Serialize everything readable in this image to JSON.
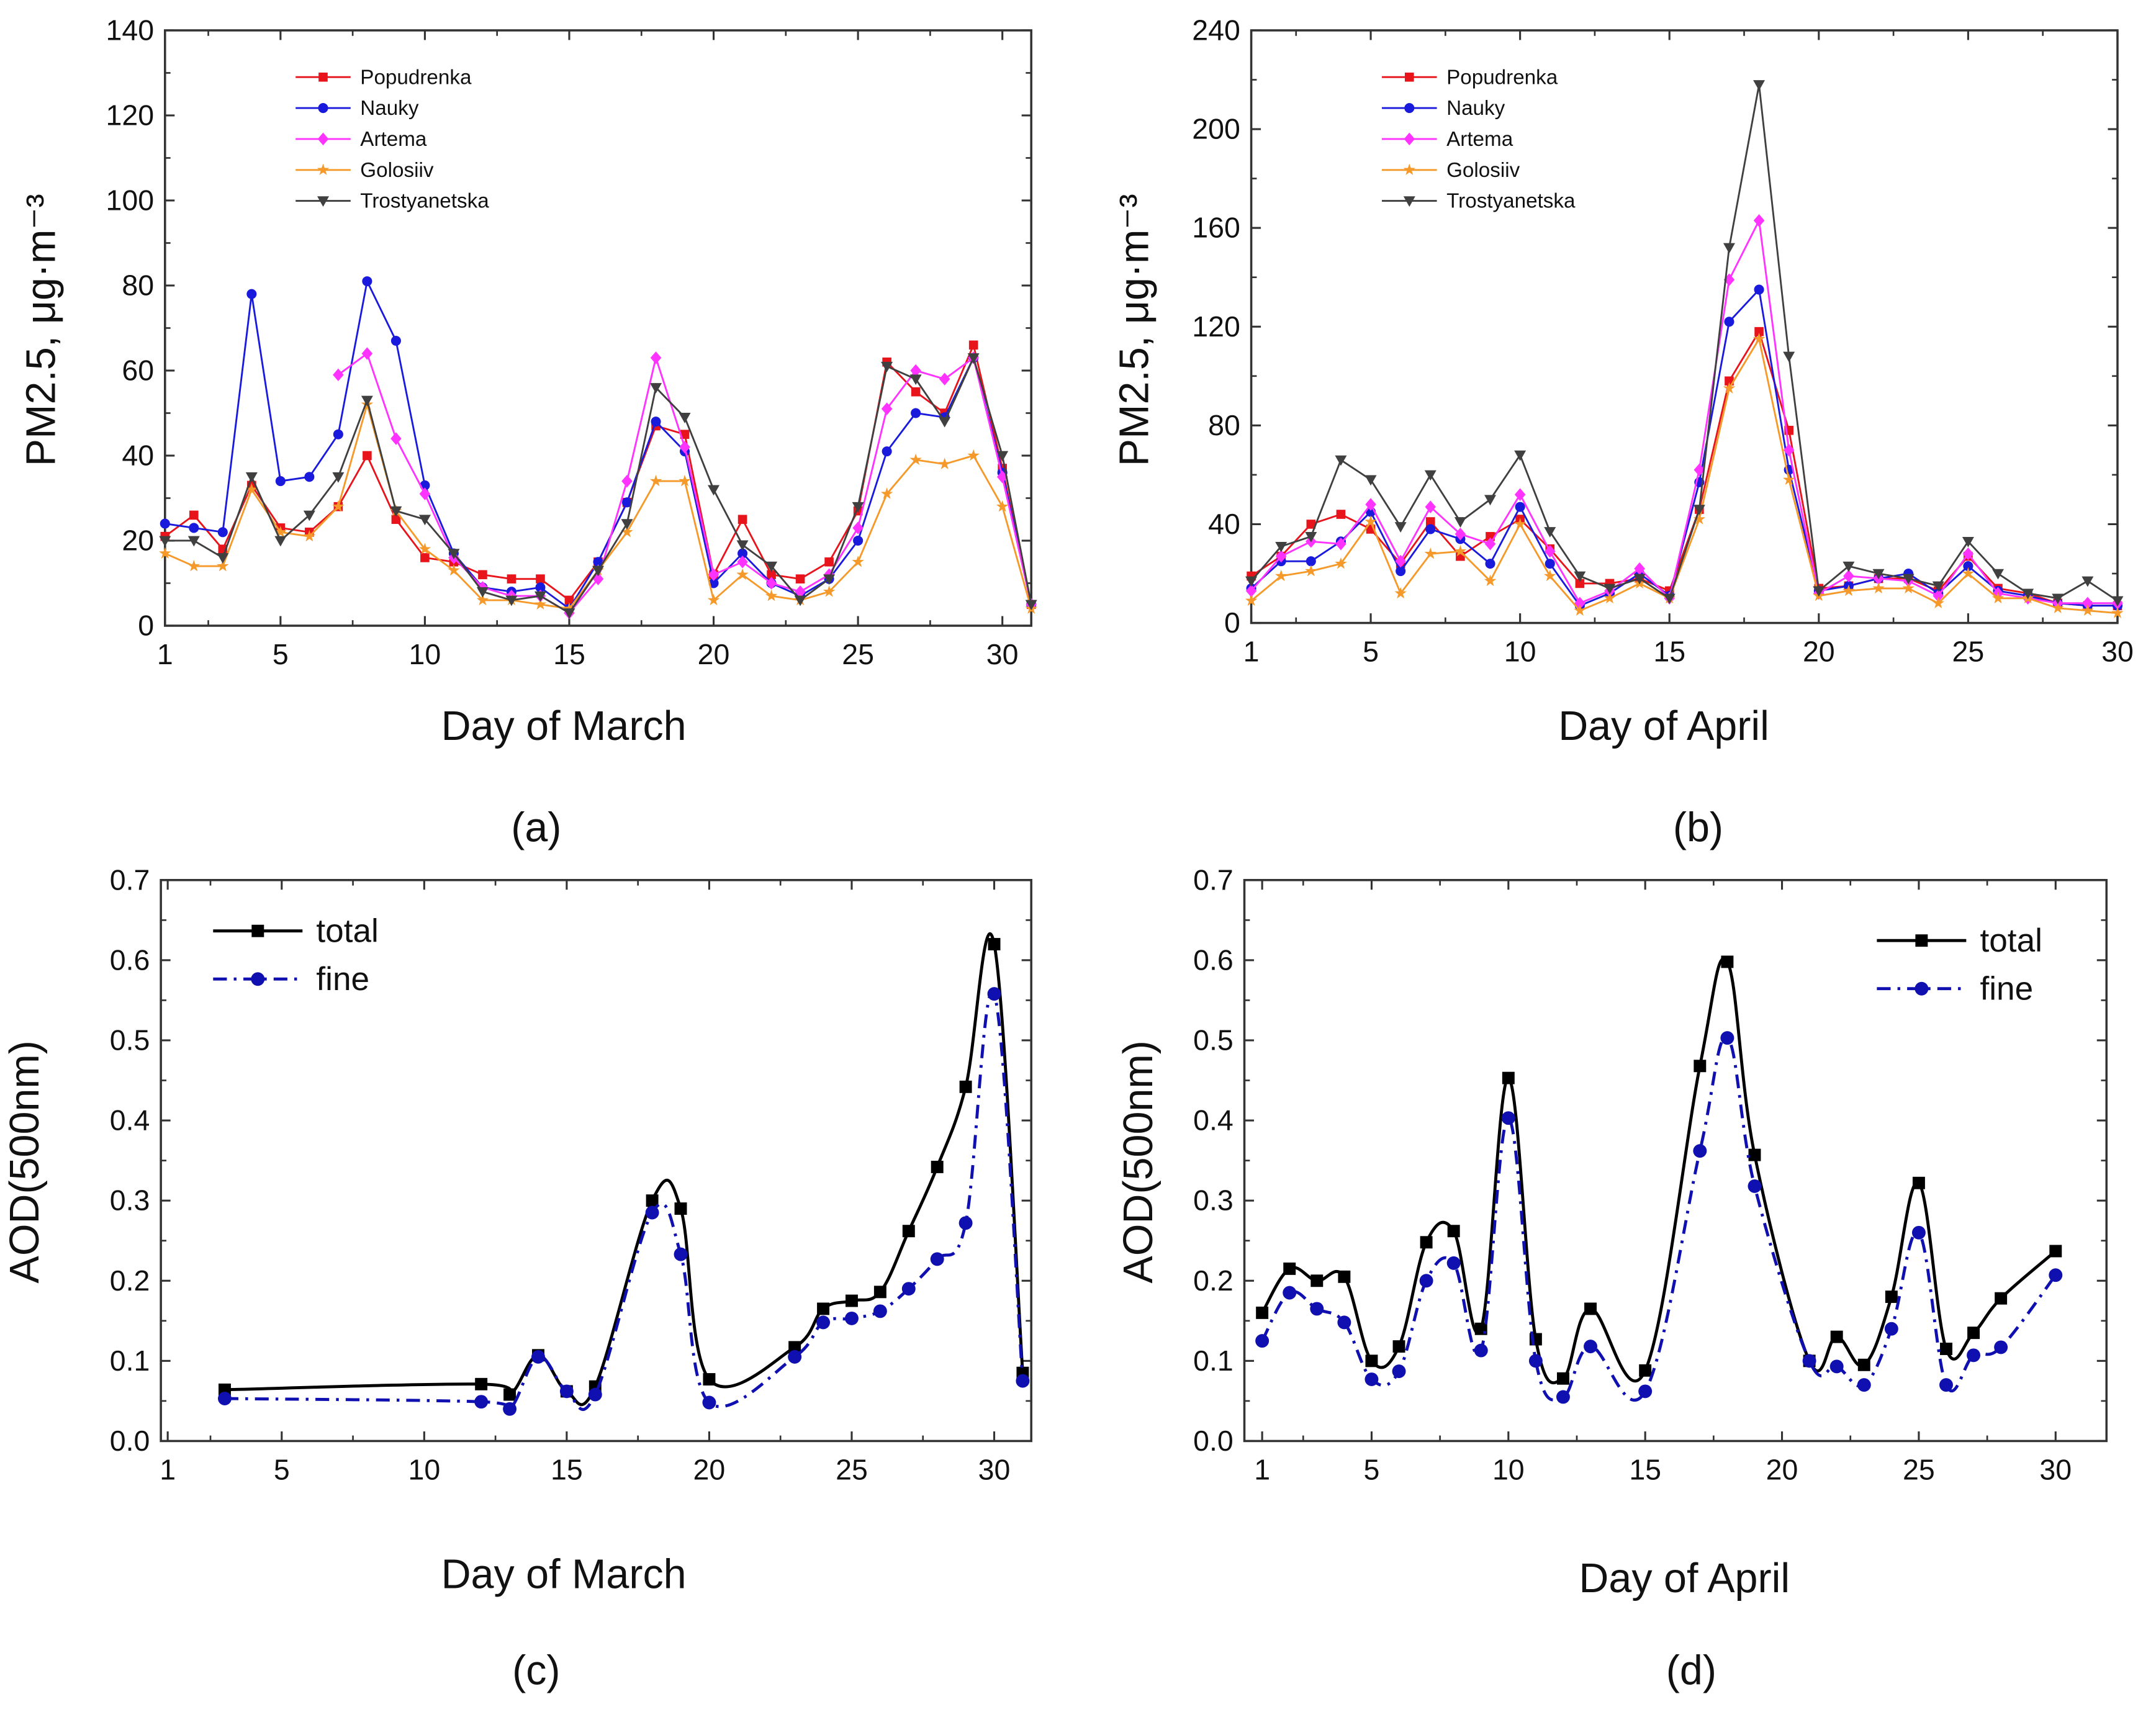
{
  "chart_data": [
    {
      "id": "a",
      "type": "line",
      "panel_label": "(a)",
      "xlabel": "Day of March",
      "ylabel": "PM2.5, μg·m⁻³",
      "xlim": [
        1,
        31
      ],
      "ylim": [
        0,
        140
      ],
      "xticks": [
        1,
        5,
        10,
        15,
        20,
        25,
        30
      ],
      "yticks": [
        0,
        20,
        40,
        60,
        80,
        100,
        120,
        140
      ],
      "legend_placement": "top-left",
      "smooth": false,
      "x": [
        1,
        2,
        3,
        4,
        5,
        6,
        7,
        8,
        9,
        10,
        11,
        12,
        13,
        14,
        15,
        16,
        17,
        18,
        19,
        20,
        21,
        22,
        23,
        24,
        25,
        26,
        27,
        28,
        29,
        30,
        31
      ],
      "series": [
        {
          "name": "Popudrenka",
          "color": "#e8141b",
          "marker": "square",
          "values": [
            21,
            26,
            18,
            33,
            23,
            22,
            28,
            40,
            25,
            16,
            15,
            12,
            11,
            11,
            6,
            15,
            29,
            47,
            45,
            12,
            25,
            12,
            11,
            15,
            27,
            62,
            55,
            50,
            66,
            37,
            5
          ]
        },
        {
          "name": "Nauky",
          "color": "#1a1adc",
          "marker": "circle",
          "values": [
            24,
            23,
            22,
            78,
            34,
            35,
            45,
            81,
            67,
            33,
            17,
            9,
            8,
            9,
            4,
            15,
            29,
            48,
            41,
            10,
            17,
            10,
            7,
            11,
            20,
            41,
            50,
            49,
            63,
            36,
            5
          ]
        },
        {
          "name": "Artema",
          "color": "#ff33ff",
          "marker": "diamond",
          "values": [
            null,
            null,
            null,
            null,
            null,
            null,
            59,
            64,
            44,
            31,
            16,
            9,
            7,
            7,
            3,
            11,
            34,
            63,
            42,
            12,
            15,
            10,
            8,
            12,
            23,
            51,
            60,
            58,
            63,
            35,
            5
          ]
        },
        {
          "name": "Golosiiv",
          "color": "#f59a2a",
          "marker": "star",
          "values": [
            17,
            14,
            14,
            32,
            22,
            21,
            28,
            52,
            27,
            18,
            13,
            6,
            6,
            5,
            4,
            13,
            22,
            34,
            34,
            6,
            12,
            7,
            6,
            8,
            15,
            31,
            39,
            38,
            40,
            28,
            4
          ]
        },
        {
          "name": "Trostyanetska",
          "color": "#404040",
          "marker": "triangle-down",
          "values": [
            20,
            20,
            16,
            35,
            20,
            26,
            35,
            53,
            27,
            25,
            17,
            8,
            6,
            7,
            3,
            13,
            24,
            56,
            49,
            32,
            19,
            14,
            6,
            11,
            28,
            61,
            58,
            48,
            63,
            40,
            5
          ]
        }
      ]
    },
    {
      "id": "b",
      "type": "line",
      "panel_label": "(b)",
      "xlabel": "Day of April",
      "ylabel": "PM2.5, μg·m⁻³",
      "xlim": [
        1,
        30
      ],
      "ylim": [
        0,
        240
      ],
      "xticks": [
        1,
        5,
        10,
        15,
        20,
        25,
        30
      ],
      "yticks": [
        0,
        40,
        80,
        120,
        160,
        200,
        240
      ],
      "legend_placement": "top-left",
      "smooth": false,
      "x": [
        1,
        2,
        3,
        4,
        5,
        6,
        7,
        8,
        9,
        10,
        11,
        12,
        13,
        14,
        15,
        16,
        17,
        18,
        19,
        20,
        21,
        22,
        23,
        24,
        25,
        26,
        27,
        28,
        29,
        30
      ],
      "series": [
        {
          "name": "Popudrenka",
          "color": "#e8141b",
          "marker": "square",
          "values": [
            19,
            27,
            40,
            44,
            38,
            24,
            41,
            27,
            35,
            42,
            30,
            16,
            16,
            18,
            13,
            46,
            98,
            118,
            78,
            14,
            15,
            18,
            18,
            13,
            27,
            14,
            12,
            8,
            7,
            7
          ]
        },
        {
          "name": "Nauky",
          "color": "#1a1adc",
          "marker": "circle",
          "values": [
            14,
            25,
            25,
            33,
            45,
            21,
            38,
            34,
            24,
            47,
            24,
            7,
            12,
            20,
            11,
            57,
            122,
            135,
            62,
            13,
            15,
            18,
            20,
            12,
            23,
            13,
            11,
            8,
            7,
            7
          ]
        },
        {
          "name": "Artema",
          "color": "#ff33ff",
          "marker": "diamond",
          "values": [
            13,
            27,
            33,
            32,
            48,
            25,
            47,
            36,
            32,
            52,
            29,
            8,
            13,
            22,
            10,
            62,
            139,
            163,
            70,
            12,
            19,
            18,
            17,
            11,
            28,
            12,
            10,
            8,
            8,
            8
          ]
        },
        {
          "name": "Golosiiv",
          "color": "#f59a2a",
          "marker": "star",
          "values": [
            9,
            19,
            21,
            24,
            41,
            12,
            28,
            29,
            17,
            40,
            19,
            5,
            10,
            16,
            10,
            42,
            95,
            115,
            58,
            11,
            13,
            14,
            14,
            8,
            20,
            10,
            10,
            6,
            5,
            4
          ]
        },
        {
          "name": "Trostyanetska",
          "color": "#404040",
          "marker": "triangle-down",
          "values": [
            17,
            31,
            35,
            66,
            58,
            39,
            60,
            41,
            50,
            68,
            37,
            19,
            14,
            18,
            10,
            46,
            152,
            218,
            108,
            13,
            23,
            20,
            18,
            15,
            33,
            20,
            12,
            10,
            17,
            9
          ]
        }
      ]
    },
    {
      "id": "c",
      "type": "line",
      "panel_label": "(c)",
      "xlabel": "Day of March",
      "ylabel": "AOD(500nm)",
      "xlim": [
        0.76,
        31.3
      ],
      "ylim": [
        0,
        0.7
      ],
      "xticks": [
        1,
        5,
        10,
        15,
        20,
        25,
        30
      ],
      "yticks": [
        0.0,
        0.1,
        0.2,
        0.3,
        0.4,
        0.5,
        0.6,
        0.7
      ],
      "ytick_format": 1,
      "legend_placement": "top-left",
      "smooth": true,
      "x": [
        3,
        12,
        13,
        14,
        15,
        16,
        18,
        19,
        20,
        23,
        24,
        25,
        26,
        27,
        28,
        29,
        30,
        31
      ],
      "series": [
        {
          "name": "total",
          "color": "#000000",
          "marker": "square",
          "dash": "none",
          "values": [
            0.064,
            0.071,
            0.058,
            0.107,
            0.062,
            0.068,
            0.3,
            0.29,
            0.077,
            0.117,
            0.165,
            0.175,
            0.186,
            0.262,
            0.342,
            0.442,
            0.62,
            0.085
          ]
        },
        {
          "name": "fine",
          "color": "#1010b0",
          "marker": "circle",
          "dash": "dashdot",
          "values": [
            0.053,
            0.049,
            0.04,
            0.105,
            0.062,
            0.058,
            0.285,
            0.233,
            0.048,
            0.105,
            0.148,
            0.153,
            0.162,
            0.19,
            0.227,
            0.272,
            0.558,
            0.075
          ]
        }
      ]
    },
    {
      "id": "d",
      "type": "line",
      "panel_label": "(d)",
      "xlabel": "Day of April",
      "ylabel": "AOD(500nm)",
      "xlim": [
        0.35,
        31.86
      ],
      "ylim": [
        0,
        0.7
      ],
      "xticks": [
        1,
        5,
        10,
        15,
        20,
        25,
        30
      ],
      "yticks": [
        0.0,
        0.1,
        0.2,
        0.3,
        0.4,
        0.5,
        0.6,
        0.7
      ],
      "ytick_format": 1,
      "legend_placement": "top-right",
      "smooth": true,
      "x": [
        1,
        2,
        3,
        4,
        5,
        6,
        7,
        8,
        9,
        10,
        11,
        12,
        13,
        15,
        17,
        18,
        19,
        21,
        22,
        23,
        24,
        25,
        26,
        27,
        28,
        30
      ],
      "series": [
        {
          "name": "total",
          "color": "#000000",
          "marker": "square",
          "dash": "none",
          "values": [
            0.16,
            0.215,
            0.2,
            0.205,
            0.1,
            0.118,
            0.248,
            0.262,
            0.14,
            0.453,
            0.127,
            0.078,
            0.165,
            0.088,
            0.468,
            0.598,
            0.357,
            0.1,
            0.13,
            0.095,
            0.18,
            0.322,
            0.115,
            0.135,
            0.178,
            0.237
          ]
        },
        {
          "name": "fine",
          "color": "#1010b0",
          "marker": "circle",
          "dash": "dashdot",
          "values": [
            0.125,
            0.185,
            0.165,
            0.148,
            0.077,
            0.087,
            0.2,
            0.222,
            0.113,
            0.403,
            0.1,
            0.055,
            0.118,
            0.062,
            0.362,
            0.503,
            0.318,
            0.1,
            0.093,
            0.07,
            0.14,
            0.26,
            0.07,
            0.107,
            0.117,
            0.207
          ]
        }
      ]
    }
  ]
}
